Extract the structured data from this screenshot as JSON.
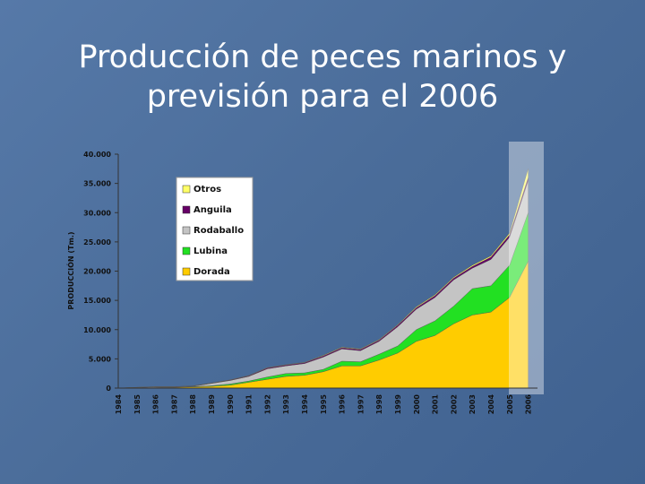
{
  "chart_data": {
    "type": "stacked_area",
    "title": "Producción de peces marinos y previsión para el 2006",
    "y_label": "PRODUCCIÓN (Tm.)",
    "categories": [
      "1984",
      "1985",
      "1986",
      "1987",
      "1988",
      "1989",
      "1990",
      "1991",
      "1992",
      "1993",
      "1994",
      "1995",
      "1996",
      "1997",
      "1998",
      "1999",
      "2000",
      "2001",
      "2002",
      "2003",
      "2004",
      "2005",
      "2006"
    ],
    "series": [
      {
        "name": "Dorada",
        "color": "#ffcc00",
        "values": [
          0,
          50,
          100,
          150,
          200,
          300,
          500,
          1000,
          1500,
          2000,
          2200,
          2800,
          3800,
          3800,
          4800,
          6000,
          8000,
          9000,
          11000,
          12500,
          13000,
          15500,
          21700
        ]
      },
      {
        "name": "Lubina",
        "color": "#22e022",
        "values": [
          0,
          0,
          0,
          0,
          50,
          100,
          200,
          200,
          400,
          500,
          400,
          400,
          800,
          700,
          1000,
          1200,
          2000,
          2500,
          3000,
          4500,
          4500,
          5500,
          8300
        ]
      },
      {
        "name": "Rodaballo",
        "color": "#c4c4c4",
        "values": [
          0,
          50,
          100,
          50,
          50,
          400,
          600,
          800,
          1400,
          1300,
          1600,
          2100,
          2100,
          1900,
          2200,
          3300,
          3500,
          4000,
          4500,
          3500,
          4500,
          4800,
          5500
        ]
      },
      {
        "name": "Anguila",
        "color": "#660066",
        "values": [
          0,
          20,
          30,
          30,
          50,
          50,
          80,
          100,
          150,
          150,
          150,
          200,
          200,
          200,
          200,
          250,
          250,
          300,
          300,
          300,
          400,
          400,
          500
        ]
      },
      {
        "name": "Otros",
        "color": "#ffff66",
        "values": [
          0,
          10,
          10,
          10,
          20,
          20,
          20,
          50,
          50,
          50,
          50,
          100,
          100,
          100,
          100,
          100,
          150,
          150,
          150,
          200,
          200,
          300,
          1500
        ]
      }
    ],
    "ylim": [
      0,
      40000
    ],
    "yticks": [
      0,
      {
        "value": 5000,
        "label": "5.000"
      },
      {
        "value": 10000,
        "label": "10.000"
      },
      {
        "value": 15000,
        "label": "15.000"
      },
      {
        "value": 20000,
        "label": "20.000"
      },
      {
        "value": 25000,
        "label": "25.000"
      },
      {
        "value": 30000,
        "label": "30.000"
      },
      {
        "value": 35000,
        "label": "35.000"
      },
      {
        "value": 40000,
        "label": "40.000"
      }
    ],
    "legend": "top-left"
  }
}
